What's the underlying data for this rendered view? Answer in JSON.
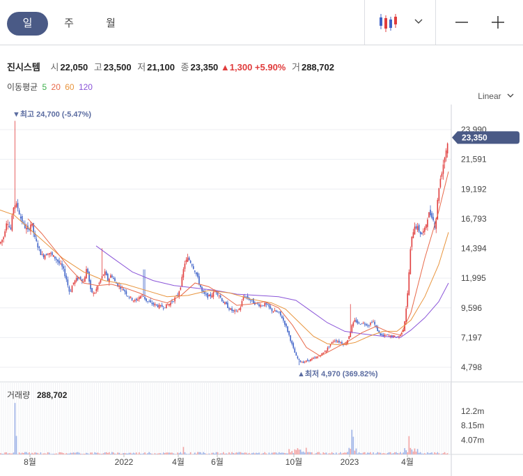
{
  "tabs": [
    {
      "label": "일",
      "active": true
    },
    {
      "label": "주",
      "active": false
    },
    {
      "label": "월",
      "active": false
    }
  ],
  "toolbar": {
    "chart_type_icon": "candlestick-icon",
    "dropdown_icon": "chevron-down-icon",
    "zoom_out_icon": "minus-icon",
    "zoom_in_icon": "plus-icon"
  },
  "stock": {
    "name": "진시스템",
    "open_label": "시",
    "open": "22,050",
    "high_label": "고",
    "high": "23,500",
    "low_label": "저",
    "low": "21,100",
    "close_label": "종",
    "close": "23,350",
    "change": "▲1,300 +5.90%",
    "volume_label": "거",
    "volume": "288,702"
  },
  "moving_average": {
    "label": "이동평균",
    "periods": [
      {
        "value": "5",
        "color": "#3bb04a"
      },
      {
        "value": "20",
        "color": "#e8694a"
      },
      {
        "value": "60",
        "color": "#e8943c"
      },
      {
        "value": "120",
        "color": "#8a54d8"
      }
    ]
  },
  "scale_label": "Linear",
  "chart_data": {
    "type": "candlestick",
    "price_axis": {
      "ticks": [
        "23,990",
        "21,591",
        "19,192",
        "16,793",
        "14,394",
        "11,995",
        "9,596",
        "7,197",
        "4,798"
      ],
      "range": [
        4798,
        23990
      ]
    },
    "volume_axis": {
      "ticks": [
        "12.2m",
        "8.15m",
        "4.07m"
      ],
      "max": 16300000
    },
    "x_ticks": [
      "8월",
      "2022",
      "4월",
      "6월",
      "10월",
      "2023",
      "4월"
    ],
    "current_price": "23,350",
    "high_marker": "▼최고 24,700 (-5.47%)",
    "low_marker": "▲최저 4,970 (369.82%)",
    "volume_label": "거래량",
    "volume_value": "288,702",
    "colors": {
      "up": "#e03c3c",
      "down": "#3e62c8",
      "ma5": "#3bb04a",
      "ma20": "#e8694a",
      "ma60": "#e8943c",
      "ma120": "#8a54d8",
      "price_tag": "#4a5a86"
    },
    "close_path": [
      [
        0,
        14800
      ],
      [
        5,
        15300
      ],
      [
        10,
        16800
      ],
      [
        15,
        15800
      ],
      [
        20,
        18000
      ],
      [
        25,
        17800
      ],
      [
        30,
        16800
      ],
      [
        35,
        16200
      ],
      [
        40,
        15800
      ],
      [
        45,
        16500
      ],
      [
        50,
        15200
      ],
      [
        55,
        14500
      ],
      [
        60,
        13800
      ],
      [
        65,
        13900
      ],
      [
        70,
        14100
      ],
      [
        75,
        13800
      ],
      [
        80,
        13600
      ],
      [
        85,
        13200
      ],
      [
        90,
        12800
      ],
      [
        95,
        12000
      ],
      [
        100,
        10800
      ],
      [
        105,
        11600
      ],
      [
        110,
        11900
      ],
      [
        115,
        12100
      ],
      [
        120,
        11700
      ],
      [
        125,
        12900
      ],
      [
        130,
        11000
      ],
      [
        135,
        10700
      ],
      [
        140,
        11300
      ],
      [
        145,
        11900
      ],
      [
        150,
        12500
      ],
      [
        155,
        11800
      ],
      [
        160,
        12300
      ],
      [
        165,
        11700
      ],
      [
        170,
        11400
      ],
      [
        175,
        11200
      ],
      [
        180,
        10900
      ],
      [
        185,
        10500
      ],
      [
        190,
        10300
      ],
      [
        195,
        10100
      ],
      [
        200,
        10500
      ],
      [
        205,
        10600
      ],
      [
        210,
        10200
      ],
      [
        215,
        10000
      ],
      [
        220,
        9900
      ],
      [
        225,
        9800
      ],
      [
        230,
        9700
      ],
      [
        235,
        9700
      ],
      [
        240,
        9800
      ],
      [
        245,
        10000
      ],
      [
        250,
        10300
      ],
      [
        255,
        10600
      ],
      [
        260,
        11500
      ],
      [
        265,
        13200
      ],
      [
        270,
        13600
      ],
      [
        275,
        13200
      ],
      [
        280,
        12600
      ],
      [
        285,
        11800
      ],
      [
        290,
        10900
      ],
      [
        295,
        10600
      ],
      [
        300,
        10500
      ],
      [
        305,
        10700
      ],
      [
        310,
        11000
      ],
      [
        315,
        10600
      ],
      [
        320,
        10100
      ],
      [
        325,
        9800
      ],
      [
        330,
        9500
      ],
      [
        335,
        9300
      ],
      [
        340,
        9300
      ],
      [
        345,
        9600
      ],
      [
        350,
        10600
      ],
      [
        355,
        10400
      ],
      [
        360,
        10200
      ],
      [
        365,
        10000
      ],
      [
        370,
        9900
      ],
      [
        375,
        9800
      ],
      [
        380,
        9900
      ],
      [
        385,
        9700
      ],
      [
        390,
        9400
      ],
      [
        395,
        9300
      ],
      [
        400,
        9200
      ],
      [
        405,
        8800
      ],
      [
        410,
        8200
      ],
      [
        415,
        7400
      ],
      [
        420,
        6500
      ],
      [
        425,
        5700
      ],
      [
        430,
        5300
      ],
      [
        435,
        5200
      ],
      [
        440,
        5300
      ],
      [
        445,
        5400
      ],
      [
        450,
        5500
      ],
      [
        455,
        5600
      ],
      [
        460,
        5800
      ],
      [
        465,
        6000
      ],
      [
        470,
        6300
      ],
      [
        475,
        6700
      ],
      [
        480,
        7000
      ],
      [
        485,
        6900
      ],
      [
        490,
        6800
      ],
      [
        495,
        6600
      ],
      [
        500,
        7100
      ],
      [
        505,
        8100
      ],
      [
        510,
        8600
      ],
      [
        515,
        8300
      ],
      [
        520,
        8400
      ],
      [
        525,
        8300
      ],
      [
        530,
        8200
      ],
      [
        535,
        8600
      ],
      [
        540,
        8000
      ],
      [
        545,
        7500
      ],
      [
        550,
        7300
      ],
      [
        555,
        7400
      ],
      [
        560,
        7300
      ],
      [
        565,
        7300
      ],
      [
        570,
        7200
      ],
      [
        575,
        7400
      ],
      [
        580,
        8000
      ],
      [
        585,
        10500
      ],
      [
        590,
        14800
      ],
      [
        595,
        16300
      ],
      [
        600,
        16000
      ],
      [
        605,
        15500
      ],
      [
        610,
        15900
      ],
      [
        615,
        17200
      ],
      [
        620,
        17100
      ],
      [
        625,
        16100
      ],
      [
        630,
        19300
      ],
      [
        635,
        20800
      ],
      [
        640,
        22200
      ],
      [
        644,
        23350
      ]
    ],
    "ma20_path": [
      [
        40,
        16800
      ],
      [
        60,
        15600
      ],
      [
        80,
        14200
      ],
      [
        100,
        12800
      ],
      [
        120,
        11600
      ],
      [
        140,
        11400
      ],
      [
        160,
        11500
      ],
      [
        180,
        11200
      ],
      [
        200,
        10800
      ],
      [
        220,
        10300
      ],
      [
        240,
        10000
      ],
      [
        260,
        10600
      ],
      [
        280,
        11600
      ],
      [
        300,
        11300
      ],
      [
        320,
        10600
      ],
      [
        340,
        9800
      ],
      [
        360,
        9900
      ],
      [
        380,
        10100
      ],
      [
        400,
        9600
      ],
      [
        420,
        8200
      ],
      [
        440,
        6400
      ],
      [
        460,
        5700
      ],
      [
        480,
        6300
      ],
      [
        500,
        6900
      ],
      [
        520,
        7600
      ],
      [
        540,
        8100
      ],
      [
        560,
        7600
      ],
      [
        575,
        7400
      ],
      [
        590,
        9200
      ],
      [
        610,
        13600
      ],
      [
        630,
        17400
      ],
      [
        644,
        20600
      ]
    ],
    "ma60_path": [
      [
        0,
        17500
      ],
      [
        20,
        17100
      ],
      [
        50,
        15600
      ],
      [
        90,
        13600
      ],
      [
        120,
        12500
      ],
      [
        150,
        11800
      ],
      [
        180,
        11500
      ],
      [
        210,
        11000
      ],
      [
        240,
        10500
      ],
      [
        270,
        10600
      ],
      [
        300,
        11000
      ],
      [
        330,
        10800
      ],
      [
        360,
        10300
      ],
      [
        390,
        10000
      ],
      [
        410,
        9500
      ],
      [
        430,
        8400
      ],
      [
        450,
        7300
      ],
      [
        470,
        6700
      ],
      [
        490,
        6600
      ],
      [
        510,
        6800
      ],
      [
        530,
        7300
      ],
      [
        550,
        7700
      ],
      [
        570,
        7700
      ],
      [
        590,
        8600
      ],
      [
        610,
        10500
      ],
      [
        630,
        13100
      ],
      [
        644,
        15700
      ]
    ],
    "ma120_path": [
      [
        138,
        14600
      ],
      [
        160,
        13700
      ],
      [
        190,
        12500
      ],
      [
        220,
        11800
      ],
      [
        250,
        11400
      ],
      [
        280,
        11200
      ],
      [
        310,
        11000
      ],
      [
        340,
        10700
      ],
      [
        370,
        10600
      ],
      [
        400,
        10500
      ],
      [
        425,
        10200
      ],
      [
        445,
        9400
      ],
      [
        470,
        8400
      ],
      [
        495,
        7700
      ],
      [
        520,
        7500
      ],
      [
        550,
        7300
      ],
      [
        575,
        7200
      ],
      [
        590,
        7800
      ],
      [
        610,
        8800
      ],
      [
        630,
        10100
      ],
      [
        644,
        11600
      ]
    ]
  }
}
